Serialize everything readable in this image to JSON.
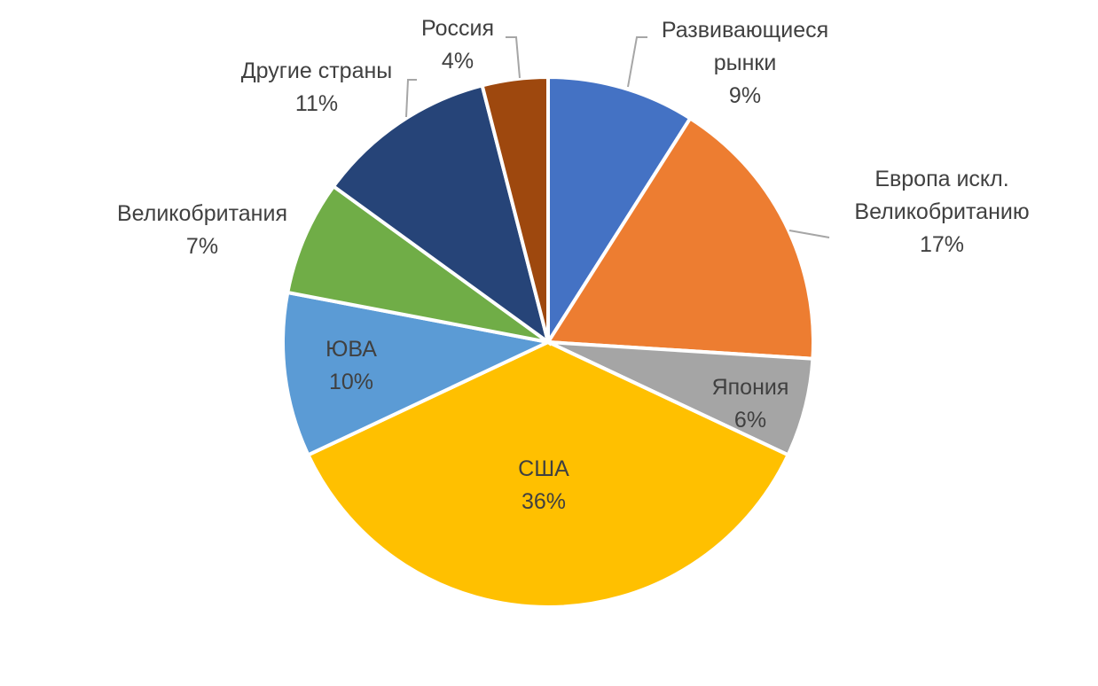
{
  "chart_data": {
    "type": "pie",
    "slices": [
      {
        "name": "Развивающиеся рынки",
        "label_lines": [
          "Развивающиеся",
          "рынки"
        ],
        "value": 9,
        "value_label": "9%",
        "color": "#4472C4"
      },
      {
        "name": "Европа искл. Великобританию",
        "label_lines": [
          "Европа искл.",
          "Великобританию"
        ],
        "value": 17,
        "value_label": "17%",
        "color": "#ED7D31"
      },
      {
        "name": "Япония",
        "label_lines": [
          "Япония"
        ],
        "value": 6,
        "value_label": "6%",
        "color": "#A5A5A5"
      },
      {
        "name": "США",
        "label_lines": [
          "США"
        ],
        "value": 36,
        "value_label": "36%",
        "color": "#FFC000"
      },
      {
        "name": "ЮВА",
        "label_lines": [
          "ЮВА"
        ],
        "value": 10,
        "value_label": "10%",
        "color": "#5B9BD5"
      },
      {
        "name": "Великобритания",
        "label_lines": [
          "Великобритания"
        ],
        "value": 7,
        "value_label": "7%",
        "color": "#70AD47"
      },
      {
        "name": "Другие страны",
        "label_lines": [
          "Другие страны"
        ],
        "value": 11,
        "value_label": "11%",
        "color": "#264478"
      },
      {
        "name": "Россия",
        "label_lines": [
          "Россия"
        ],
        "value": 4,
        "value_label": "4%",
        "color": "#9E480E"
      }
    ]
  }
}
